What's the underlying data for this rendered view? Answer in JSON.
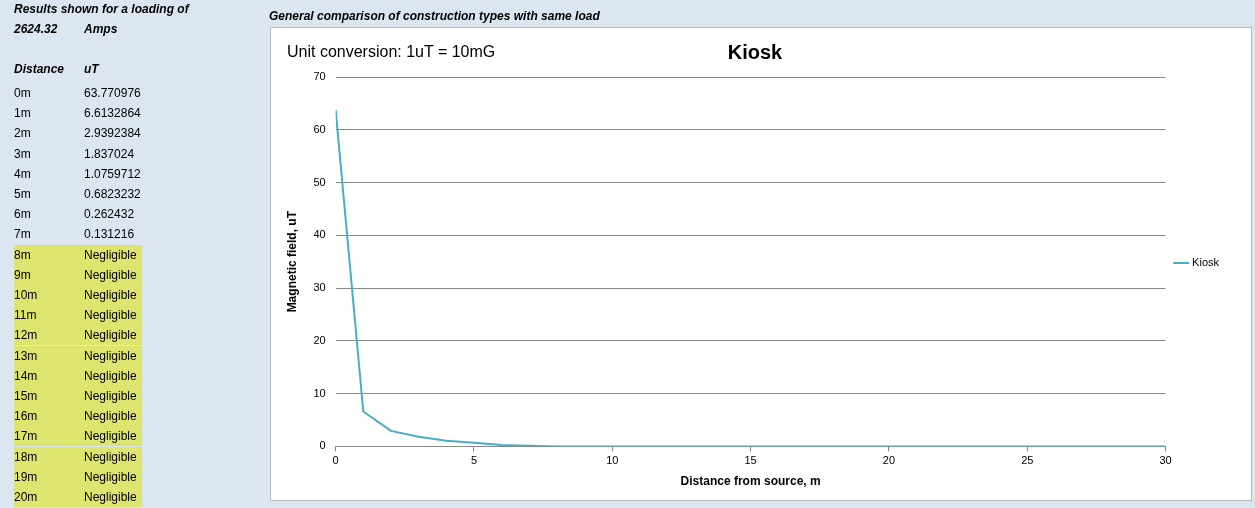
{
  "chart_data": {
    "type": "line",
    "title": "Kiosk",
    "xlabel": "Distance from source, m",
    "ylabel": "Magnetic field, uT",
    "annotations": [
      "Results shown for a loading of",
      "2624.32",
      "Amps",
      "Distance",
      "uT",
      "General comparison of construction types with same load",
      "Unit conversion: 1uT = 10mG",
      "0m",
      "1m",
      "2m",
      "3m",
      "4m",
      "5m",
      "6m",
      "7m",
      "8m",
      "9m",
      "10m",
      "11m",
      "12m",
      "13m",
      "14m",
      "15m",
      "16m",
      "17m",
      "18m",
      "19m",
      "20m",
      "63.770976",
      "6.6132864",
      "2.9392384",
      "1.837024",
      "1.0759712",
      "0.6823232",
      "0.262432",
      "0.131216",
      "Negligible",
      "Negligible",
      "Negligible",
      "Negligible",
      "Negligible",
      "Negligible",
      "Negligible",
      "Negligible",
      "Negligible",
      "Negligible",
      "Negligible",
      "Negligible",
      "Negligible"
    ],
    "x": [
      0,
      1,
      2,
      3,
      4,
      5,
      6,
      7,
      8,
      9,
      10,
      11,
      12,
      13,
      14,
      15,
      16,
      17,
      18,
      19,
      20,
      21,
      22,
      23,
      24,
      25,
      26,
      27,
      28,
      29,
      30
    ],
    "series": [
      {
        "name": "Kiosk",
        "color": "#4bacc6",
        "values": [
          63.770976,
          6.6132864,
          2.9392384,
          1.837024,
          1.0759712,
          0.6823232,
          0.262432,
          0.131216,
          0,
          0,
          0,
          0,
          0,
          0,
          0,
          0,
          0,
          0,
          0,
          0,
          0,
          0,
          0,
          0,
          0,
          0,
          0,
          0,
          0,
          0,
          0
        ]
      }
    ],
    "xlim": [
      0,
      30
    ],
    "xticks": [
      0,
      5,
      10,
      15,
      20,
      25,
      30
    ],
    "ylim": [
      0,
      70
    ],
    "yticks": [
      0,
      10,
      20,
      30,
      40,
      50,
      60,
      70
    ],
    "grid": "y",
    "legend": "right",
    "marker": "none",
    "line_style": "solid"
  }
}
